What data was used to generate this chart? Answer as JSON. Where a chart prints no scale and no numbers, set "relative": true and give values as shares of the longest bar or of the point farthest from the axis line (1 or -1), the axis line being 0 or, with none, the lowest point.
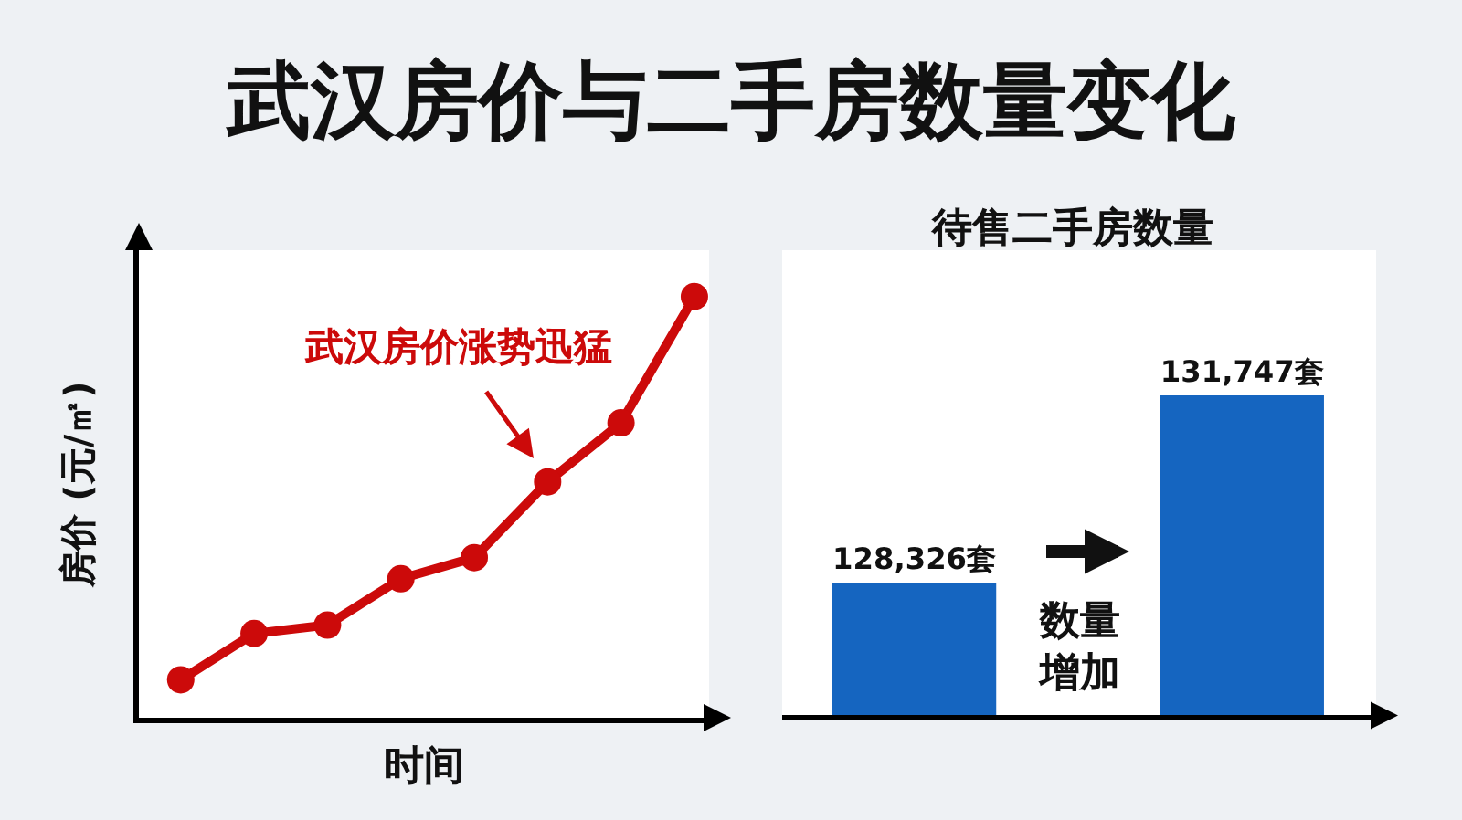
{
  "chart_data": [
    {
      "type": "line",
      "title": "武汉房价与二手房数量变化",
      "xlabel": "时间",
      "ylabel": "房价 (元/㎡)",
      "categories": [
        null,
        null,
        null,
        null,
        null,
        null,
        null,
        null
      ],
      "values": [
        0.09,
        0.2,
        0.22,
        0.33,
        0.38,
        0.56,
        0.7,
        1
      ],
      "relative": true,
      "color": "#cc0a0a",
      "marker": "circle",
      "annotations": [
        "武汉房价涨势迅猛"
      ]
    },
    {
      "type": "bar",
      "title": "待售二手房数量",
      "categories": [
        null,
        null
      ],
      "values": [
        128326,
        131747
      ],
      "value_labels": [
        "128,326套",
        "131,747套"
      ],
      "color": "#1565c0",
      "ylim": [
        125900,
        134400
      ],
      "tick_labels": false,
      "annotations": [
        "数量增加"
      ]
    }
  ]
}
